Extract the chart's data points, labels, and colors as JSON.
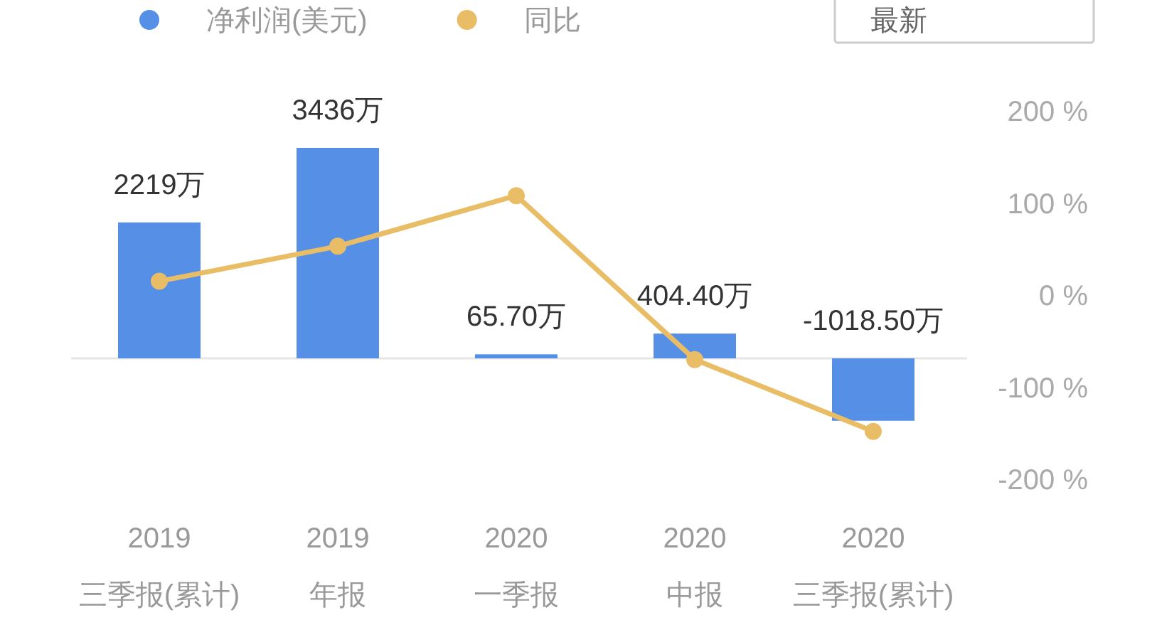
{
  "chart_data": {
    "type": "bar",
    "categories": [
      "2019\n三季报(累计)",
      "2019\n年报",
      "2020\n一季报",
      "2020\n中报",
      "2020\n三季报(累计)"
    ],
    "series": [
      {
        "name": "净利润(美元)",
        "color": "#5590e6",
        "values": [
          2219,
          3436,
          65.7,
          404.4,
          -1018.5
        ],
        "value_labels": [
          "2219万",
          "3436万",
          "65.70万",
          "404.40万",
          "-1018.50万"
        ]
      },
      {
        "name": "同比",
        "type": "line",
        "axis": "y2",
        "color": "#e9bd66",
        "values": [
          15,
          53,
          108,
          -70,
          -148
        ]
      }
    ],
    "y2lim": [
      -200,
      200
    ],
    "y2ticks": [
      {
        "value": 200,
        "label": "200 %"
      },
      {
        "value": 100,
        "label": "100 %"
      },
      {
        "value": 0,
        "label": "0 %"
      },
      {
        "value": -100,
        "label": "-100 %"
      },
      {
        "value": -200,
        "label": "-200 %"
      }
    ],
    "grid": false,
    "legend": "top left",
    "marker": "circle",
    "line_style": "solid",
    "annotations": [
      "最新"
    ]
  }
}
